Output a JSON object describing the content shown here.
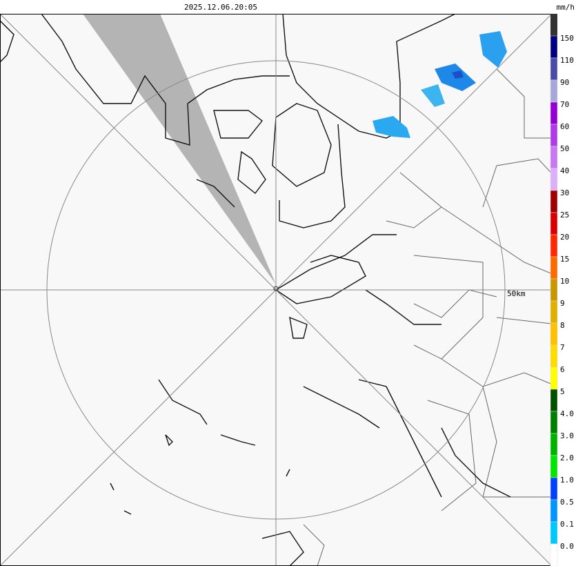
{
  "header": {
    "timestamp": "2025.12.06.20:05",
    "unit": "mm/h"
  },
  "map": {
    "range_label": "50km"
  },
  "legend": {
    "top_color": "#333333",
    "scale": [
      {
        "label": "150",
        "color": "#000080"
      },
      {
        "label": "110",
        "color": "#4a4aa8"
      },
      {
        "label": "90",
        "color": "#a8a8d8"
      },
      {
        "label": "70",
        "color": "#9400d3"
      },
      {
        "label": "60",
        "color": "#b03ce8"
      },
      {
        "label": "50",
        "color": "#c878f0"
      },
      {
        "label": "40",
        "color": "#dcb0f8"
      },
      {
        "label": "30",
        "color": "#a00000"
      },
      {
        "label": "25",
        "color": "#d80000"
      },
      {
        "label": "20",
        "color": "#ff2800"
      },
      {
        "label": "15",
        "color": "#ff6a00"
      },
      {
        "label": "10",
        "color": "#c89600"
      },
      {
        "label": "9",
        "color": "#e0b000"
      },
      {
        "label": "8",
        "color": "#ffc000"
      },
      {
        "label": "7",
        "color": "#ffdc00"
      },
      {
        "label": "6",
        "color": "#ffff00"
      },
      {
        "label": "5",
        "color": "#005000"
      },
      {
        "label": "4.0",
        "color": "#008000"
      },
      {
        "label": "3.0",
        "color": "#00b400"
      },
      {
        "label": "2.0",
        "color": "#00e600"
      },
      {
        "label": "1.0",
        "color": "#0040ff"
      },
      {
        "label": "0.5",
        "color": "#0096ff"
      },
      {
        "label": "0.1",
        "color": "#00c8ff"
      },
      {
        "label": "0.0",
        "color": "#ffffff"
      }
    ]
  }
}
